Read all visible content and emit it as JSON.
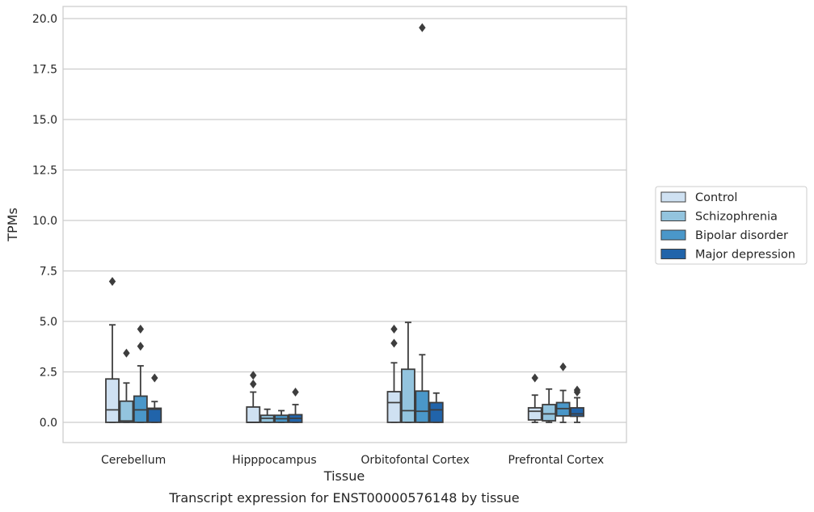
{
  "chart_data": {
    "type": "box",
    "title": "Transcript expression for ENST00000576148 by tissue",
    "xlabel": "Tissue",
    "ylabel": "TPMs",
    "ylim": [
      -1.0,
      20.6
    ],
    "yticks": [
      "0.0",
      "2.5",
      "5.0",
      "7.5",
      "10.0",
      "12.5",
      "15.0",
      "17.5",
      "20.0"
    ],
    "grid": "horizontal",
    "legend_position": "right",
    "categories": [
      "Cerebellum",
      "Hipppocampus",
      "Orbitofontal Cortex",
      "Prefrontal Cortex"
    ],
    "series": [
      {
        "name": "Control",
        "color": "#cfe1f2",
        "boxes": [
          {
            "q1": 0.0,
            "median": 0.62,
            "q3": 2.15,
            "whisker_low": 0.0,
            "whisker_high": 4.83,
            "outliers": [
              6.98
            ]
          },
          {
            "q1": 0.0,
            "median": 0.0,
            "q3": 0.76,
            "whisker_low": 0.0,
            "whisker_high": 1.5,
            "outliers": [
              1.9,
              2.33
            ]
          },
          {
            "q1": 0.0,
            "median": 0.98,
            "q3": 1.52,
            "whisker_low": 0.0,
            "whisker_high": 2.95,
            "outliers": [
              3.92,
              4.62
            ]
          },
          {
            "q1": 0.12,
            "median": 0.55,
            "q3": 0.72,
            "whisker_low": 0.0,
            "whisker_high": 1.35,
            "outliers": [
              2.2
            ]
          }
        ]
      },
      {
        "name": "Schizophrenia",
        "color": "#93c4de",
        "boxes": [
          {
            "q1": 0.0,
            "median": 0.07,
            "q3": 1.05,
            "whisker_low": 0.0,
            "whisker_high": 1.95,
            "outliers": [
              3.43
            ]
          },
          {
            "q1": 0.0,
            "median": 0.2,
            "q3": 0.35,
            "whisker_low": 0.0,
            "whisker_high": 0.65,
            "outliers": []
          },
          {
            "q1": 0.0,
            "median": 0.58,
            "q3": 2.63,
            "whisker_low": 0.0,
            "whisker_high": 4.95,
            "outliers": []
          },
          {
            "q1": 0.08,
            "median": 0.42,
            "q3": 0.88,
            "whisker_low": 0.0,
            "whisker_high": 1.65,
            "outliers": []
          }
        ]
      },
      {
        "name": "Bipolar disorder",
        "color": "#4a97c9",
        "boxes": [
          {
            "q1": 0.0,
            "median": 0.62,
            "q3": 1.3,
            "whisker_low": 0.0,
            "whisker_high": 2.8,
            "outliers": [
              3.77,
              4.62
            ]
          },
          {
            "q1": 0.0,
            "median": 0.18,
            "q3": 0.35,
            "whisker_low": 0.0,
            "whisker_high": 0.58,
            "outliers": []
          },
          {
            "q1": 0.0,
            "median": 0.55,
            "q3": 1.55,
            "whisker_low": 0.0,
            "whisker_high": 3.35,
            "outliers": [
              19.55
            ]
          },
          {
            "q1": 0.32,
            "median": 0.68,
            "q3": 0.98,
            "whisker_low": 0.0,
            "whisker_high": 1.58,
            "outliers": [
              2.75
            ]
          }
        ]
      },
      {
        "name": "Major depression",
        "color": "#2164aa",
        "boxes": [
          {
            "q1": 0.0,
            "median": 0.65,
            "q3": 0.7,
            "whisker_low": 0.0,
            "whisker_high": 1.03,
            "outliers": [
              2.2
            ]
          },
          {
            "q1": 0.0,
            "median": 0.2,
            "q3": 0.38,
            "whisker_low": 0.0,
            "whisker_high": 0.88,
            "outliers": [
              1.5
            ]
          },
          {
            "q1": 0.0,
            "median": 0.62,
            "q3": 0.98,
            "whisker_low": 0.0,
            "whisker_high": 1.45,
            "outliers": []
          },
          {
            "q1": 0.3,
            "median": 0.42,
            "q3": 0.72,
            "whisker_low": 0.0,
            "whisker_high": 1.22,
            "outliers": [
              1.5,
              1.6
            ]
          }
        ]
      }
    ]
  }
}
